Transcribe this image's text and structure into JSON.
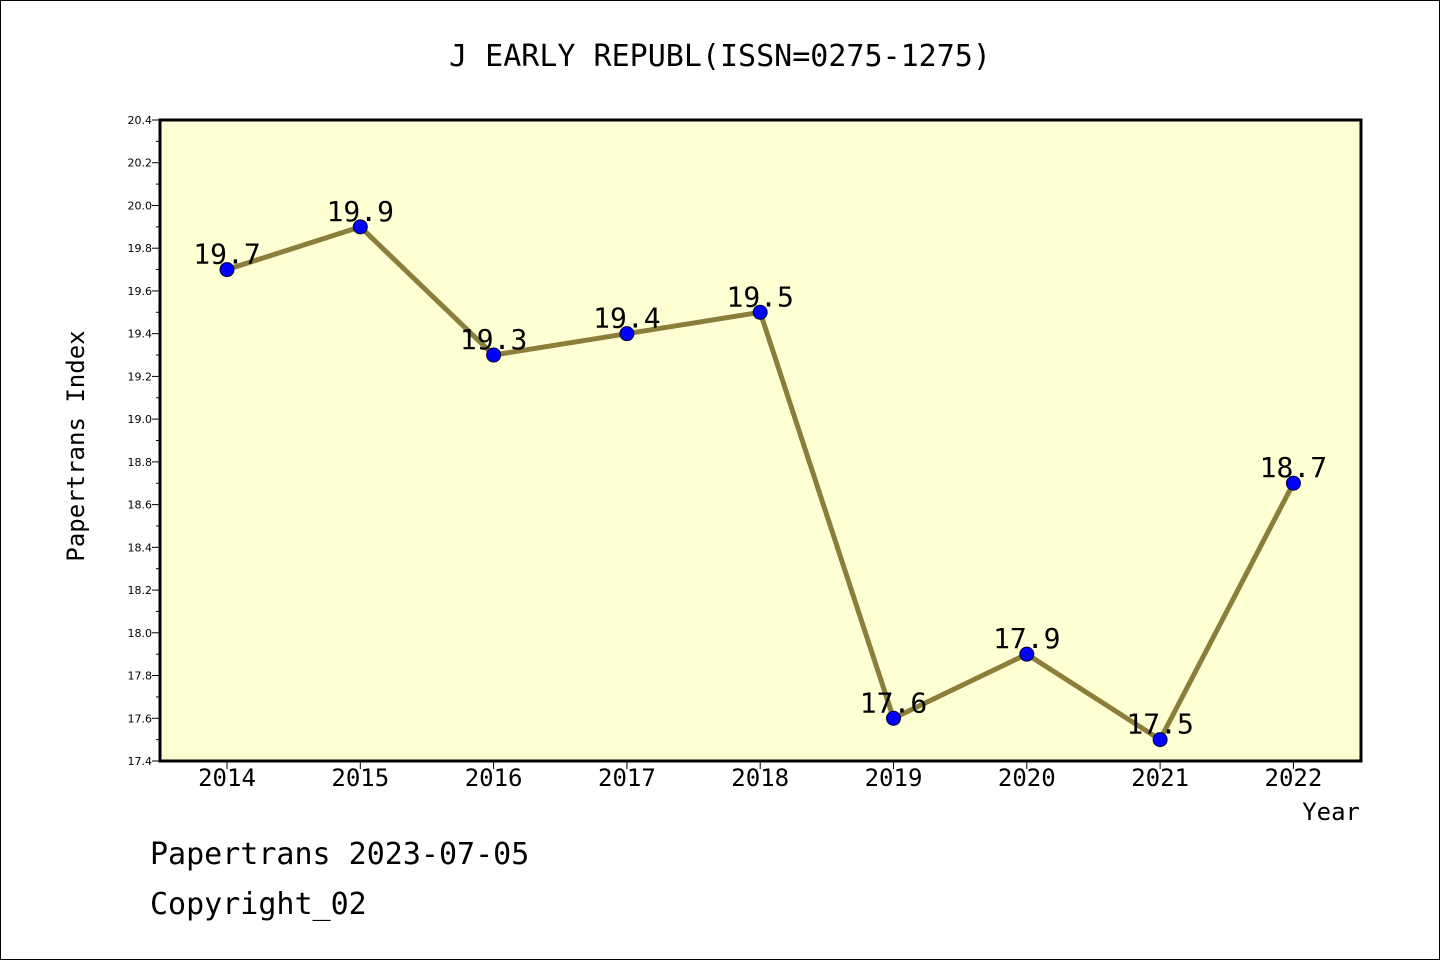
{
  "chart_data": {
    "type": "line",
    "title": "J EARLY REPUBL(ISSN=0275-1275)",
    "xlabel": "Year",
    "ylabel": "Papertrans Index",
    "categories": [
      "2014",
      "2015",
      "2016",
      "2017",
      "2018",
      "2019",
      "2020",
      "2021",
      "2022"
    ],
    "values": [
      19.7,
      19.9,
      19.3,
      19.4,
      19.5,
      17.6,
      17.9,
      17.5,
      18.7
    ],
    "data_labels": [
      "19.7",
      "19.9",
      "19.3",
      "19.4",
      "19.5",
      "17.6",
      "17.9",
      "17.5",
      "18.7"
    ],
    "ylim": [
      17.4,
      20.4
    ],
    "yticks": [
      "17.4",
      "17.6",
      "17.8",
      "18.0",
      "18.2",
      "18.4",
      "18.6",
      "18.8",
      "19.0",
      "19.2",
      "19.4",
      "19.6",
      "19.8",
      "20.0",
      "20.2",
      "20.4"
    ],
    "grid": false,
    "colors": {
      "plot_background": "#ffffd4",
      "line": "#8b7d3a",
      "marker": "#0000ff"
    }
  },
  "footer": {
    "line1": "Papertrans 2023-07-05",
    "line2": "Copyright_02"
  }
}
